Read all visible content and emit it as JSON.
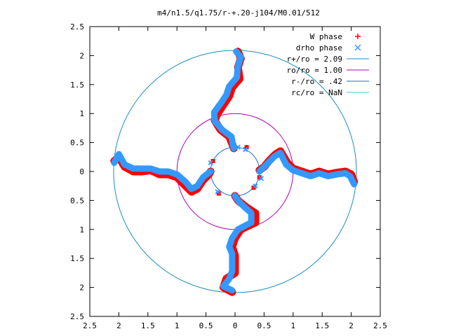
{
  "chart_data": {
    "type": "scatter",
    "title": "m4/n1.5/q1.75/r-+.20-j104/M0.01/512",
    "xlim": [
      -2.5,
      2.5
    ],
    "ylim": [
      -2.5,
      2.5
    ],
    "x_ticks": [
      "2.5",
      "2",
      "1.5",
      "1",
      "0.5",
      "0",
      "0.5",
      "1",
      "1.5",
      "2",
      "2.5"
    ],
    "y_ticks": [
      "2.5",
      "2",
      "1.5",
      "1",
      "0.5",
      "0",
      "0.5",
      "1",
      "1.5",
      "2",
      "2.5"
    ],
    "grid": false,
    "legend_position": "top-right",
    "colors": {
      "w_phase": "#ff0000",
      "drho_phase": "#3399ff",
      "r_plus": "#1a8fc0",
      "r_o": "#b000b0",
      "r_minus": "#1a6fd0",
      "r_c": "#33cccc"
    },
    "series": [
      {
        "name": "W phase",
        "symbol": "+",
        "arms": [
          [
            [
              0.05,
              2.07
            ],
            [
              0.1,
              1.95
            ],
            [
              0.05,
              1.8
            ],
            [
              0.08,
              1.6
            ],
            [
              -0.05,
              1.45
            ],
            [
              -0.1,
              1.3
            ],
            [
              -0.2,
              1.15
            ],
            [
              -0.3,
              1.0
            ],
            [
              -0.35,
              0.88
            ],
            [
              -0.25,
              0.72
            ],
            [
              -0.1,
              0.6
            ],
            [
              -0.05,
              0.48
            ],
            [
              -0.02,
              0.4
            ]
          ],
          [
            [
              2.05,
              -0.18
            ],
            [
              2.0,
              -0.05
            ],
            [
              1.9,
              0.0
            ],
            [
              1.75,
              -0.02
            ],
            [
              1.6,
              -0.05
            ],
            [
              1.45,
              0.0
            ],
            [
              1.3,
              -0.05
            ],
            [
              1.15,
              0.0
            ],
            [
              1.0,
              0.05
            ],
            [
              0.9,
              0.15
            ],
            [
              0.78,
              0.35
            ],
            [
              0.7,
              0.3
            ],
            [
              0.6,
              0.2
            ],
            [
              0.5,
              0.08
            ],
            [
              0.42,
              0.02
            ]
          ],
          [
            [
              -0.05,
              -2.08
            ],
            [
              -0.2,
              -2.0
            ],
            [
              -0.15,
              -1.85
            ],
            [
              0.0,
              -1.75
            ],
            [
              0.0,
              -1.6
            ],
            [
              0.0,
              -1.45
            ],
            [
              -0.05,
              -1.3
            ],
            [
              0.0,
              -1.15
            ],
            [
              0.1,
              -1.0
            ],
            [
              0.35,
              -0.88
            ],
            [
              0.35,
              -0.72
            ],
            [
              0.2,
              -0.62
            ],
            [
              0.05,
              -0.5
            ],
            [
              0.0,
              -0.42
            ]
          ],
          [
            [
              -2.08,
              0.18
            ],
            [
              -2.0,
              0.25
            ],
            [
              -1.9,
              0.08
            ],
            [
              -1.75,
              0.0
            ],
            [
              -1.6,
              0.0
            ],
            [
              -1.45,
              0.02
            ],
            [
              -1.3,
              -0.05
            ],
            [
              -1.15,
              -0.05
            ],
            [
              -1.0,
              -0.1
            ],
            [
              -0.85,
              -0.25
            ],
            [
              -0.75,
              -0.35
            ],
            [
              -0.65,
              -0.3
            ],
            [
              -0.55,
              -0.15
            ],
            [
              -0.45,
              -0.05
            ],
            [
              -0.42,
              0.0
            ]
          ]
        ],
        "scattered": [
          [
            -0.38,
            0.18
          ],
          [
            -0.28,
            -0.38
          ],
          [
            0.2,
            0.42
          ],
          [
            0.32,
            -0.28
          ],
          [
            0.42,
            -0.1
          ]
        ]
      },
      {
        "name": "drho phase",
        "symbol": "x",
        "arms": [
          [
            [
              0.02,
              2.07
            ],
            [
              0.1,
              1.97
            ],
            [
              0.05,
              1.82
            ],
            [
              0.03,
              1.62
            ],
            [
              -0.1,
              1.47
            ],
            [
              -0.15,
              1.32
            ],
            [
              -0.25,
              1.17
            ],
            [
              -0.36,
              1.02
            ],
            [
              -0.35,
              0.87
            ],
            [
              -0.22,
              0.72
            ],
            [
              -0.06,
              0.6
            ],
            [
              -0.04,
              0.48
            ],
            [
              -0.02,
              0.4
            ]
          ],
          [
            [
              2.05,
              -0.22
            ],
            [
              1.98,
              -0.08
            ],
            [
              1.9,
              -0.03
            ],
            [
              1.75,
              -0.05
            ],
            [
              1.6,
              -0.08
            ],
            [
              1.45,
              -0.03
            ],
            [
              1.3,
              -0.08
            ],
            [
              1.15,
              -0.03
            ],
            [
              1.0,
              0.02
            ],
            [
              0.88,
              0.12
            ],
            [
              0.78,
              0.32
            ],
            [
              0.68,
              0.26
            ],
            [
              0.58,
              0.16
            ],
            [
              0.48,
              0.06
            ],
            [
              0.42,
              0.0
            ]
          ],
          [
            [
              -0.05,
              -2.05
            ],
            [
              -0.2,
              -1.98
            ],
            [
              -0.1,
              -1.85
            ],
            [
              -0.05,
              -1.72
            ],
            [
              -0.05,
              -1.58
            ],
            [
              -0.05,
              -1.42
            ],
            [
              -0.1,
              -1.3
            ],
            [
              -0.05,
              -1.15
            ],
            [
              0.05,
              -1.0
            ],
            [
              0.28,
              -0.88
            ],
            [
              0.28,
              -0.72
            ],
            [
              0.15,
              -0.6
            ],
            [
              0.05,
              -0.5
            ],
            [
              0.0,
              -0.42
            ]
          ],
          [
            [
              -2.08,
              0.15
            ],
            [
              -2.0,
              0.3
            ],
            [
              -1.9,
              0.12
            ],
            [
              -1.75,
              0.05
            ],
            [
              -1.6,
              0.05
            ],
            [
              -1.45,
              0.05
            ],
            [
              -1.3,
              0.0
            ],
            [
              -1.15,
              0.0
            ],
            [
              -1.0,
              -0.05
            ],
            [
              -0.85,
              -0.18
            ],
            [
              -0.75,
              -0.3
            ],
            [
              -0.65,
              -0.25
            ],
            [
              -0.55,
              -0.1
            ],
            [
              -0.45,
              -0.02
            ],
            [
              -0.42,
              0.0
            ]
          ]
        ],
        "scattered": [
          [
            -0.42,
            0.15
          ],
          [
            -0.3,
            -0.35
          ],
          [
            0.18,
            0.38
          ],
          [
            0.35,
            -0.25
          ],
          [
            0.45,
            -0.12
          ],
          [
            0.05,
            0.42
          ]
        ]
      },
      {
        "name": "r+/ro = 2.09",
        "type": "circle",
        "radius": 2.09
      },
      {
        "name": "ro/ro = 1.00",
        "type": "circle",
        "radius": 1.0
      },
      {
        "name": "r-/ro = .42",
        "type": "circle",
        "radius": 0.42
      },
      {
        "name": "rc/ro = NaN",
        "type": "circle",
        "radius": null
      }
    ]
  }
}
